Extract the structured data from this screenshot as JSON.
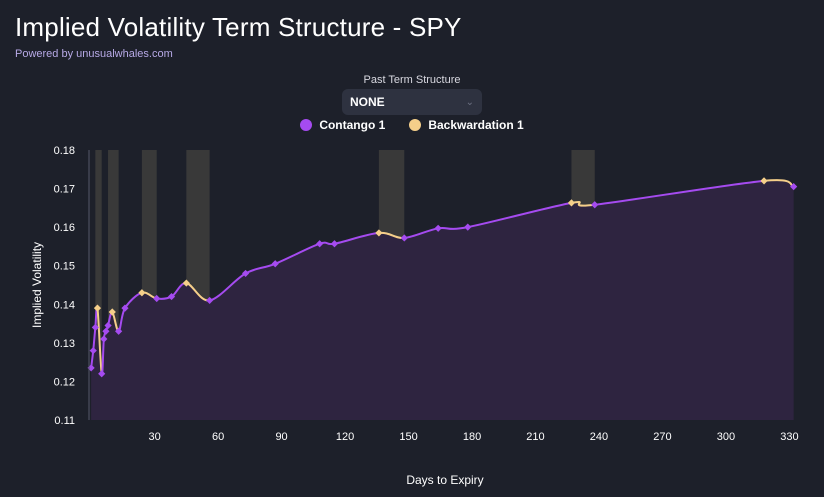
{
  "header": {
    "title": "Implied Volatility Term Structure - SPY",
    "subtitle": "Powered by unusualwhales.com"
  },
  "selector": {
    "label": "Past Term Structure",
    "value": "NONE",
    "chevron_icon": "chevron-down-icon"
  },
  "legend": [
    {
      "label": "Contango 1",
      "color": "#a54bf0"
    },
    {
      "label": "Backwardation 1",
      "color": "#f5cf8a"
    }
  ],
  "chart_data": {
    "type": "line",
    "xlabel": "Days to Expiry",
    "ylabel": "Implied Volatility",
    "xlim": [
      -1,
      335
    ],
    "ylim": [
      0.11,
      0.18
    ],
    "xticks": [
      30,
      60,
      90,
      120,
      150,
      180,
      210,
      240,
      270,
      300,
      330
    ],
    "yticks": [
      "0.11",
      "0.12",
      "0.13",
      "0.14",
      "0.15",
      "0.16",
      "0.17",
      "0.18"
    ],
    "colors": {
      "contango": "#a54bf0",
      "backwardation": "#f5cf8a",
      "area": "#2e2440",
      "band": "#393939"
    },
    "points": [
      {
        "x": 0,
        "y": 0.1235
      },
      {
        "x": 1,
        "y": 0.128
      },
      {
        "x": 2,
        "y": 0.134
      },
      {
        "x": 3,
        "y": 0.139
      },
      {
        "x": 5,
        "y": 0.122
      },
      {
        "x": 6,
        "y": 0.131
      },
      {
        "x": 7,
        "y": 0.133
      },
      {
        "x": 8,
        "y": 0.1345
      },
      {
        "x": 10,
        "y": 0.138
      },
      {
        "x": 13,
        "y": 0.133
      },
      {
        "x": 16,
        "y": 0.139
      },
      {
        "x": 24,
        "y": 0.143
      },
      {
        "x": 31,
        "y": 0.1415
      },
      {
        "x": 38,
        "y": 0.142
      },
      {
        "x": 45,
        "y": 0.1455
      },
      {
        "x": 56,
        "y": 0.141
      },
      {
        "x": 73,
        "y": 0.148
      },
      {
        "x": 87,
        "y": 0.1505
      },
      {
        "x": 108,
        "y": 0.1557
      },
      {
        "x": 115,
        "y": 0.1557
      },
      {
        "x": 136,
        "y": 0.1585
      },
      {
        "x": 148,
        "y": 0.1572
      },
      {
        "x": 164,
        "y": 0.1597
      },
      {
        "x": 178,
        "y": 0.16
      },
      {
        "x": 227,
        "y": 0.1663
      },
      {
        "x": 238,
        "y": 0.1658
      },
      {
        "x": 318,
        "y": 0.172
      },
      {
        "x": 332,
        "y": 0.1705
      }
    ],
    "backwardation_ranges": [
      [
        2,
        5
      ],
      [
        8,
        13
      ],
      [
        24,
        31
      ],
      [
        45,
        56
      ],
      [
        136,
        148
      ],
      [
        227,
        238
      ]
    ]
  }
}
